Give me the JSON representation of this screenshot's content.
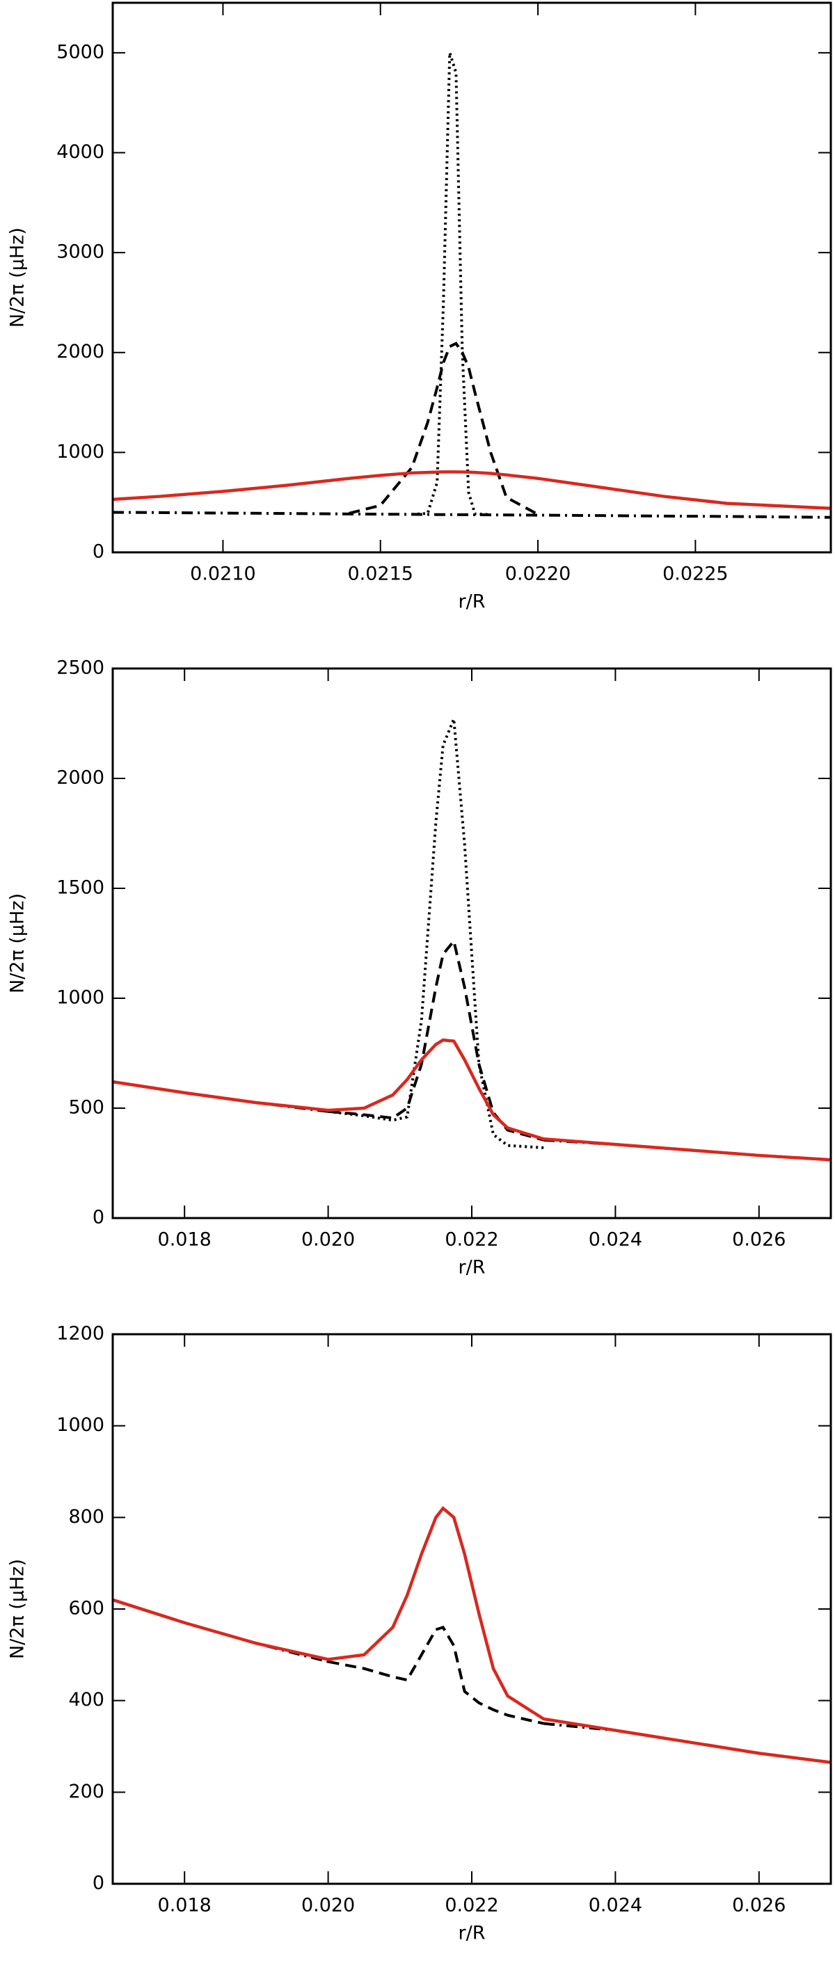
{
  "chart_data": [
    {
      "type": "line",
      "xlabel": "r/R",
      "ylabel": "N/2π (μHz)",
      "x": [
        0.02065,
        0.0208,
        0.021,
        0.0212,
        0.0214,
        0.0215,
        0.0216,
        0.02165,
        0.02168,
        0.0217,
        0.02172,
        0.02174,
        0.02176,
        0.02178,
        0.0218,
        0.02185,
        0.0219,
        0.022,
        0.0222,
        0.0224,
        0.0226,
        0.02293
      ],
      "series": [
        {
          "color": "#000000",
          "dash": "dashdot",
          "values": [
            400,
            398,
            393,
            389,
            384,
            382,
            380,
            379,
            378,
            378,
            378,
            377,
            377,
            377,
            376,
            375,
            374,
            372,
            368,
            363,
            359,
            350
          ]
        },
        {
          "color": "#000000",
          "dash": "dashed",
          "values": [
            null,
            null,
            null,
            null,
            390,
            470,
            850,
            1300,
            1650,
            1900,
            2060,
            2090,
            2000,
            1850,
            1600,
            1000,
            550,
            380,
            null,
            null,
            null,
            null
          ]
        },
        {
          "color": "#000000",
          "dash": "dotted",
          "values": [
            null,
            null,
            null,
            null,
            null,
            null,
            380,
            390,
            700,
            2500,
            5000,
            4800,
            2000,
            600,
            385,
            378,
            null,
            null,
            null,
            null,
            null,
            null
          ]
        },
        {
          "color": "#d9281e",
          "dash": "solid",
          "values": [
            530,
            560,
            610,
            670,
            740,
            770,
            795,
            800,
            803,
            805,
            805,
            805,
            804,
            803,
            800,
            790,
            775,
            740,
            650,
            560,
            490,
            440
          ]
        }
      ],
      "xlim": [
        0.02065,
        0.02293
      ],
      "xticks": [
        {
          "value": 0.021,
          "label": "0.0210"
        },
        0.0215,
        {
          "value": 0.022,
          "label": "0.0220"
        },
        0.0225
      ],
      "ylim": [
        0,
        5500
      ],
      "yticks": [
        0,
        1000,
        2000,
        3000,
        4000,
        5000
      ]
    },
    {
      "type": "line",
      "xlabel": "r/R",
      "ylabel": "N/2π (μHz)",
      "x": [
        0.017,
        0.018,
        0.019,
        0.02,
        0.0205,
        0.0209,
        0.0211,
        0.0213,
        0.0215,
        0.0216,
        0.02175,
        0.0219,
        0.0221,
        0.0223,
        0.0225,
        0.023,
        0.024,
        0.025,
        0.026,
        0.027
      ],
      "series": [
        {
          "color": "#000000",
          "dash": "dashdot",
          "values": [
            620,
            570,
            525,
            485,
            null,
            null,
            null,
            null,
            null,
            null,
            null,
            null,
            null,
            null,
            null,
            355,
            335,
            310,
            285,
            265
          ]
        },
        {
          "color": "#000000",
          "dash": "dashed",
          "values": [
            null,
            null,
            null,
            485,
            470,
            455,
            500,
            700,
            1050,
            1200,
            1260,
            1050,
            700,
            480,
            400,
            355,
            null,
            null,
            null,
            null
          ]
        },
        {
          "color": "#000000",
          "dash": "dotted",
          "values": [
            null,
            null,
            null,
            485,
            465,
            445,
            460,
            900,
            1800,
            2150,
            2270,
            1700,
            700,
            380,
            330,
            320,
            null,
            null,
            null,
            null
          ]
        },
        {
          "color": "#d9281e",
          "dash": "solid",
          "values": [
            620,
            570,
            525,
            490,
            500,
            560,
            630,
            720,
            790,
            810,
            805,
            720,
            590,
            470,
            410,
            360,
            335,
            310,
            285,
            265
          ]
        }
      ],
      "xlim": [
        0.017,
        0.027
      ],
      "xticks": [
        0.018,
        {
          "value": 0.02,
          "label": "0.020"
        },
        0.022,
        0.024,
        0.026
      ],
      "ylim": [
        0,
        2500
      ],
      "yticks": [
        0,
        500,
        1000,
        1500,
        2000,
        2500
      ]
    },
    {
      "type": "line",
      "xlabel": "r/R",
      "ylabel": "N/2π (μHz)",
      "x": [
        0.017,
        0.018,
        0.019,
        0.02,
        0.0205,
        0.0209,
        0.0211,
        0.0213,
        0.0215,
        0.0216,
        0.02175,
        0.0219,
        0.0221,
        0.0223,
        0.0225,
        0.023,
        0.024,
        0.025,
        0.026,
        0.027
      ],
      "series": [
        {
          "color": "#000000",
          "dash": "dashdot",
          "values": [
            620,
            570,
            525,
            485,
            null,
            null,
            null,
            null,
            null,
            null,
            null,
            null,
            null,
            null,
            null,
            350,
            335,
            310,
            285,
            265
          ]
        },
        {
          "color": "#000000",
          "dash": "dashed",
          "values": [
            null,
            null,
            null,
            485,
            470,
            452,
            445,
            500,
            555,
            560,
            520,
            420,
            395,
            380,
            368,
            350,
            null,
            null,
            null,
            null
          ]
        },
        {
          "color": "#d9281e",
          "dash": "solid",
          "values": [
            620,
            570,
            525,
            490,
            500,
            560,
            630,
            720,
            800,
            820,
            800,
            720,
            590,
            470,
            410,
            360,
            335,
            310,
            285,
            265
          ]
        }
      ],
      "xlim": [
        0.017,
        0.027
      ],
      "xticks": [
        0.018,
        {
          "value": 0.02,
          "label": "0.020"
        },
        0.022,
        0.024,
        0.026
      ],
      "ylim": [
        0,
        1200
      ],
      "yticks": [
        0,
        200,
        400,
        600,
        800,
        1000,
        1200
      ]
    }
  ]
}
